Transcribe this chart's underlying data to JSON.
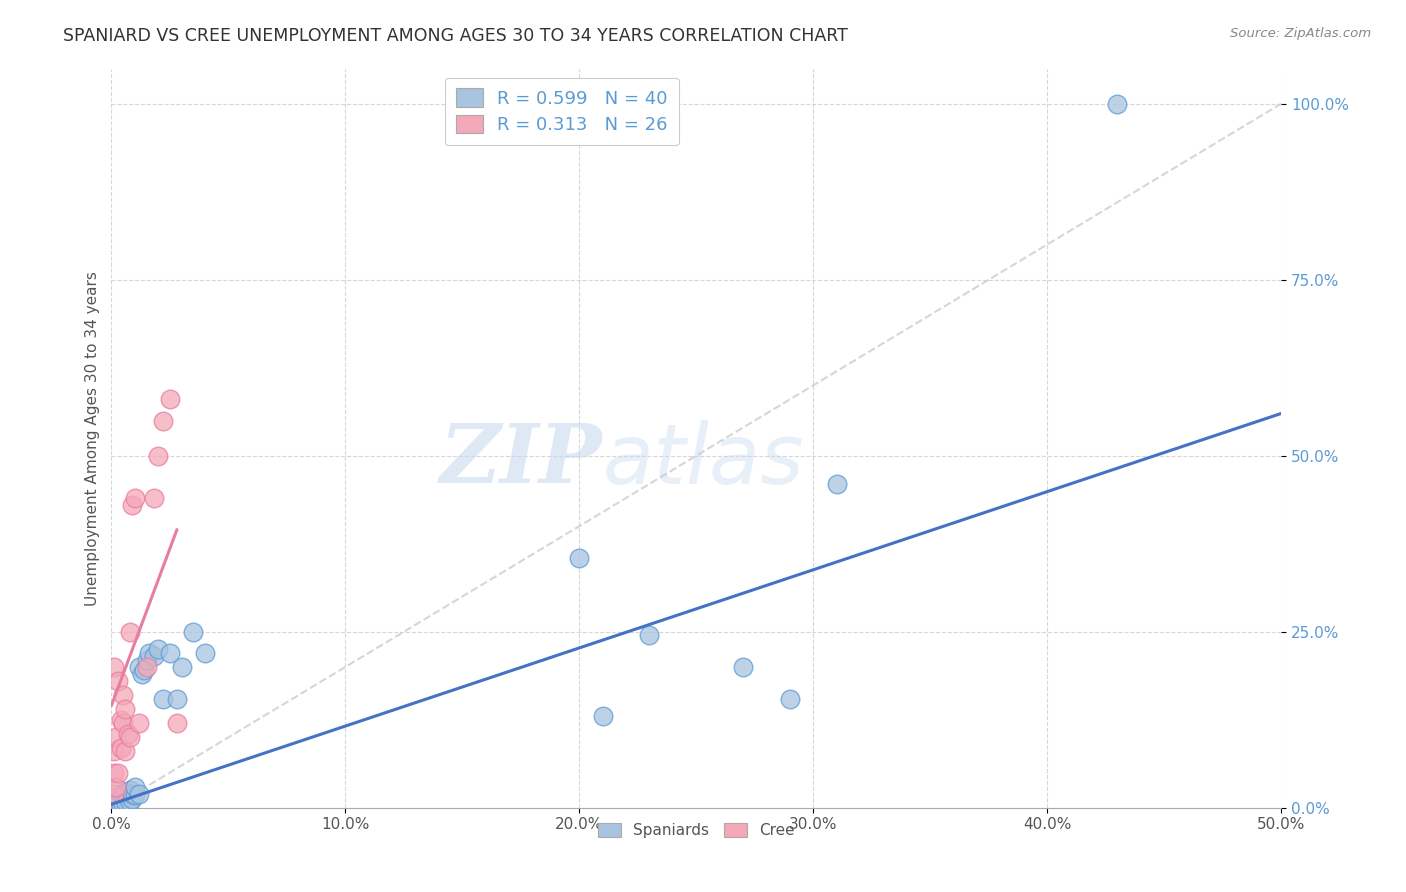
{
  "title": "SPANIARD VS CREE UNEMPLOYMENT AMONG AGES 30 TO 34 YEARS CORRELATION CHART",
  "source": "Source: ZipAtlas.com",
  "ylabel": "Unemployment Among Ages 30 to 34 years",
  "xlim": [
    0.0,
    0.5
  ],
  "ylim": [
    0.0,
    1.05
  ],
  "xticks": [
    0.0,
    0.1,
    0.2,
    0.3,
    0.4,
    0.5
  ],
  "yticks_right": [
    0.0,
    0.25,
    0.5,
    0.75,
    1.0
  ],
  "ytick_labels_right": [
    "0.0%",
    "25.0%",
    "50.0%",
    "75.0%",
    "100.0%"
  ],
  "xtick_labels": [
    "0.0%",
    "10.0%",
    "20.0%",
    "30.0%",
    "40.0%",
    "50.0%"
  ],
  "spaniards_color": "#a8c4e0",
  "spaniards_edge_color": "#5b9bd5",
  "cree_color": "#f4a8b8",
  "cree_edge_color": "#e87da0",
  "spaniards_line_color": "#4472c4",
  "cree_line_color": "#e87da0",
  "diagonal_color": "#cccccc",
  "spaniards_R": 0.599,
  "spaniards_N": 40,
  "cree_R": 0.313,
  "cree_N": 26,
  "legend_label_spaniards": "Spaniards",
  "legend_label_cree": "Cree",
  "watermark_zip": "ZIP",
  "watermark_atlas": "atlas",
  "spaniards_x": [
    0.001,
    0.001,
    0.002,
    0.002,
    0.003,
    0.003,
    0.004,
    0.004,
    0.005,
    0.005,
    0.006,
    0.006,
    0.007,
    0.008,
    0.008,
    0.009,
    0.009,
    0.01,
    0.01,
    0.012,
    0.012,
    0.013,
    0.014,
    0.015,
    0.016,
    0.018,
    0.02,
    0.022,
    0.025,
    0.028,
    0.03,
    0.035,
    0.04,
    0.2,
    0.21,
    0.23,
    0.27,
    0.29,
    0.31,
    0.43
  ],
  "spaniards_y": [
    0.005,
    0.01,
    0.002,
    0.015,
    0.005,
    0.012,
    0.003,
    0.02,
    0.006,
    0.018,
    0.01,
    0.022,
    0.015,
    0.008,
    0.025,
    0.012,
    0.02,
    0.018,
    0.03,
    0.02,
    0.2,
    0.19,
    0.195,
    0.21,
    0.22,
    0.215,
    0.225,
    0.155,
    0.22,
    0.155,
    0.2,
    0.25,
    0.22,
    0.355,
    0.13,
    0.245,
    0.2,
    0.155,
    0.46,
    1.0
  ],
  "cree_x": [
    0.001,
    0.001,
    0.001,
    0.001,
    0.002,
    0.002,
    0.003,
    0.003,
    0.004,
    0.004,
    0.005,
    0.005,
    0.006,
    0.006,
    0.007,
    0.008,
    0.008,
    0.009,
    0.01,
    0.012,
    0.015,
    0.018,
    0.02,
    0.022,
    0.025,
    0.028
  ],
  "cree_y": [
    0.02,
    0.05,
    0.08,
    0.2,
    0.03,
    0.1,
    0.05,
    0.18,
    0.085,
    0.125,
    0.12,
    0.16,
    0.08,
    0.14,
    0.105,
    0.25,
    0.1,
    0.43,
    0.44,
    0.12,
    0.2,
    0.44,
    0.5,
    0.55,
    0.58,
    0.12
  ],
  "spaniards_line_x0": 0.0,
  "spaniards_line_y0": 0.005,
  "spaniards_line_x1": 0.5,
  "spaniards_line_y1": 0.56,
  "cree_line_x0": 0.0,
  "cree_line_y0": 0.145,
  "cree_line_x1": 0.028,
  "cree_line_y1": 0.395
}
